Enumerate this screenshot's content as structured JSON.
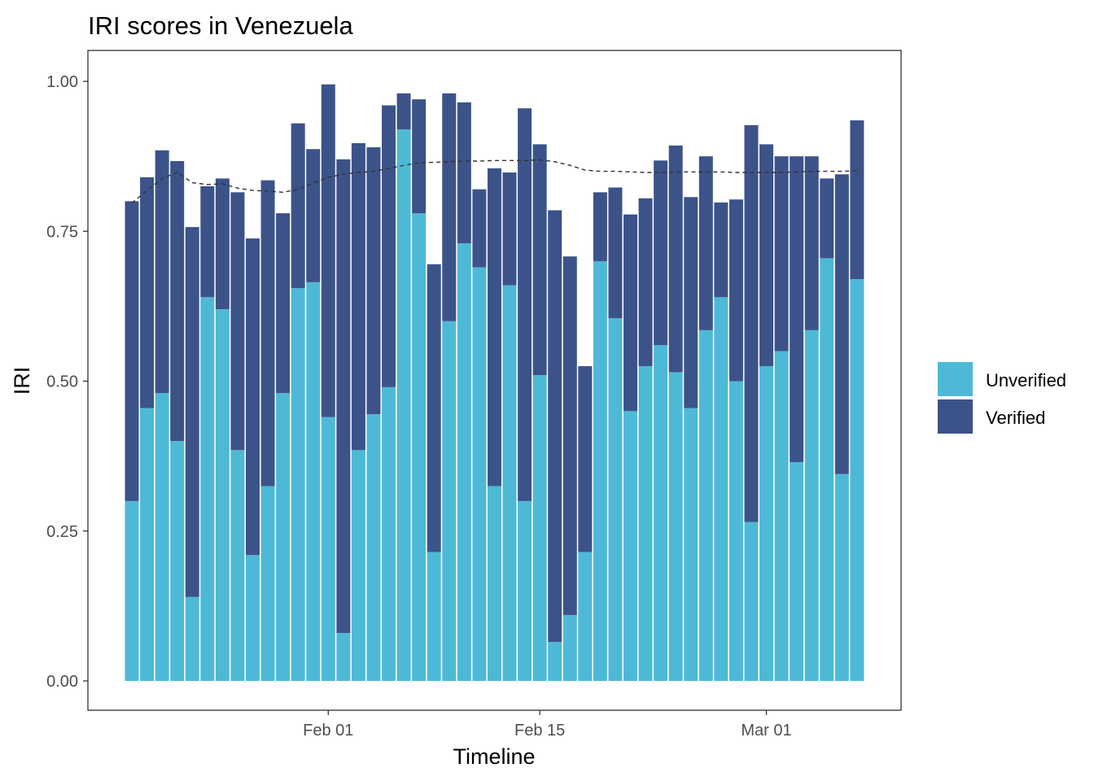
{
  "chart_data": {
    "type": "bar",
    "stacked": true,
    "title": "IRI scores in Venezuela",
    "xlabel": "Timeline",
    "ylabel": "IRI",
    "ylim": [
      0,
      1.05
    ],
    "x_start_date": "2020-01-19",
    "x_ticks": [
      {
        "label": "Feb 01",
        "date": "2020-02-01"
      },
      {
        "label": "Feb 15",
        "date": "2020-02-15"
      },
      {
        "label": "Mar 01",
        "date": "2020-03-01"
      }
    ],
    "y_ticks": [
      {
        "label": "0.00",
        "value": 0
      },
      {
        "label": "0.25",
        "value": 0.25
      },
      {
        "label": "0.50",
        "value": 0.5
      },
      {
        "label": "0.75",
        "value": 0.75
      },
      {
        "label": "1.00",
        "value": 1.0
      }
    ],
    "grid": false,
    "legend_position": "right",
    "series": [
      {
        "name": "Unverified",
        "color": "#4eb9d6",
        "values": [
          0.3,
          0.455,
          0.48,
          0.4,
          0.14,
          0.64,
          0.62,
          0.385,
          0.21,
          0.325,
          0.48,
          0.655,
          0.665,
          0.44,
          0.08,
          0.385,
          0.445,
          0.49,
          0.92,
          0.78,
          0.215,
          0.6,
          0.73,
          0.69,
          0.325,
          0.66,
          0.3,
          0.51,
          0.065,
          0.11,
          0.215,
          0.7,
          0.605,
          0.45,
          0.525,
          0.56,
          0.515,
          0.455,
          0.585,
          0.64,
          0.5,
          0.265,
          0.525,
          0.55,
          0.365,
          0.585,
          0.705,
          0.345,
          0.67
        ]
      },
      {
        "name": "Verified",
        "color": "#3c5389",
        "values": [
          0.5,
          0.385,
          0.405,
          0.467,
          0.617,
          0.185,
          0.218,
          0.43,
          0.528,
          0.51,
          0.3,
          0.275,
          0.222,
          0.555,
          0.79,
          0.512,
          0.445,
          0.47,
          0.06,
          0.19,
          0.48,
          0.38,
          0.235,
          0.13,
          0.53,
          0.188,
          0.655,
          0.385,
          0.72,
          0.598,
          0.31,
          0.115,
          0.218,
          0.328,
          0.28,
          0.308,
          0.378,
          0.352,
          0.29,
          0.158,
          0.303,
          0.662,
          0.37,
          0.325,
          0.51,
          0.29,
          0.133,
          0.5,
          0.265
        ]
      }
    ],
    "trend": {
      "name": "trend",
      "style": "dashed",
      "color": "#333333",
      "values": [
        0.797,
        0.818,
        0.838,
        0.848,
        0.831,
        0.828,
        0.829,
        0.822,
        0.818,
        0.817,
        0.815,
        0.82,
        0.83,
        0.84,
        0.845,
        0.848,
        0.85,
        0.855,
        0.86,
        0.864,
        0.865,
        0.866,
        0.867,
        0.867,
        0.868,
        0.868,
        0.868,
        0.869,
        0.866,
        0.86,
        0.852,
        0.85,
        0.85,
        0.849,
        0.848,
        0.848,
        0.849,
        0.849,
        0.849,
        0.849,
        0.848,
        0.848,
        0.848,
        0.848,
        0.849,
        0.85,
        0.85,
        0.85,
        0.851
      ]
    }
  }
}
